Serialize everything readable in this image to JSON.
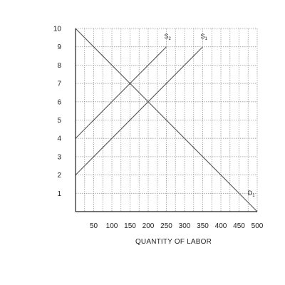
{
  "chart_data": {
    "type": "line",
    "title": "",
    "xlabel": "QUANTITY OF LABOR",
    "ylabel": "",
    "xlim": [
      0,
      500
    ],
    "ylim": [
      0,
      10
    ],
    "x_ticks": [
      50,
      100,
      150,
      200,
      250,
      300,
      350,
      400,
      450,
      500
    ],
    "x_tick_labels": [
      "50",
      "100",
      "150",
      "200",
      "250",
      "300",
      "350",
      "400",
      "450",
      "500"
    ],
    "y_ticks": [
      1,
      2,
      3,
      4,
      5,
      6,
      7,
      8,
      9,
      10
    ],
    "y_tick_labels": [
      "1",
      "2",
      "3",
      "4",
      "5",
      "6",
      "7",
      "8",
      "9",
      "10"
    ],
    "grid": true,
    "grid_style": "dotted",
    "x_grid_step": 25,
    "series": [
      {
        "name": "D1",
        "label_main": "D",
        "label_sub": "1",
        "points": [
          [
            0,
            10
          ],
          [
            500,
            0
          ]
        ]
      },
      {
        "name": "S1",
        "label_main": "S",
        "label_sub": "1",
        "points": [
          [
            0,
            2
          ],
          [
            350,
            9
          ]
        ]
      },
      {
        "name": "S2",
        "label_main": "S",
        "label_sub": "2",
        "points": [
          [
            0,
            4
          ],
          [
            250,
            9
          ]
        ]
      }
    ],
    "colors": {
      "series": "#555555",
      "grid": "#9a9a9a",
      "axis": "#222222"
    }
  }
}
